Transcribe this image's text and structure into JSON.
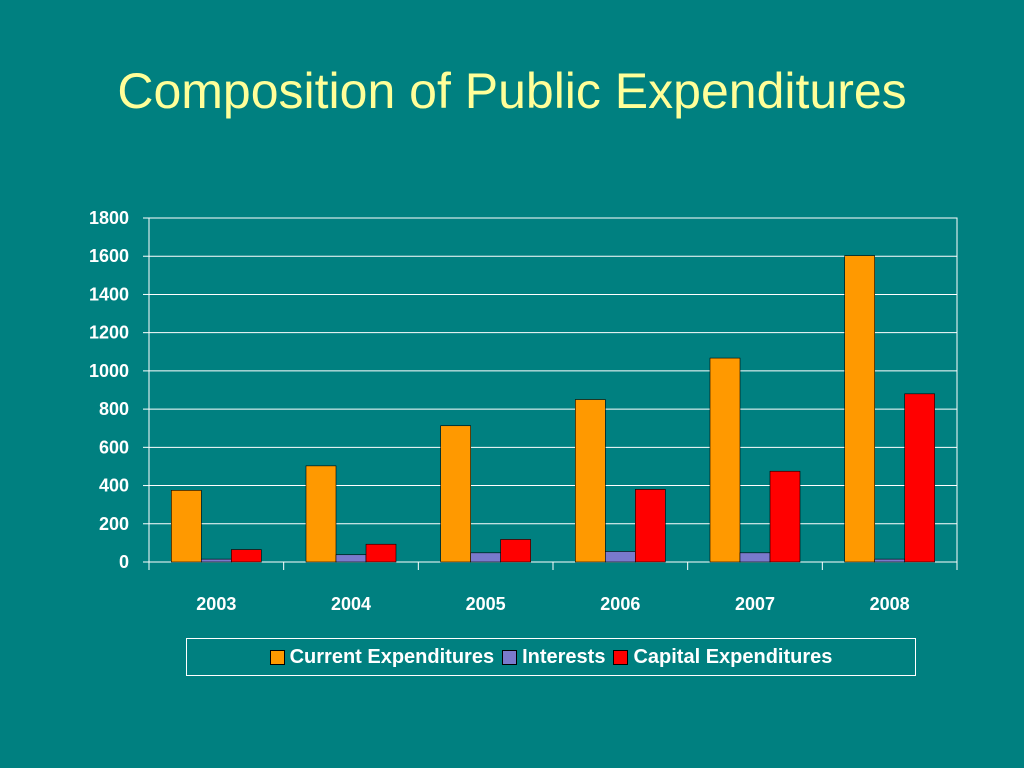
{
  "slide": {
    "title": "Composition of Public Expenditures"
  },
  "colors": {
    "background": "#008080",
    "title": "#ffff99",
    "axis": "#ffffff"
  },
  "chart_data": {
    "type": "bar",
    "title": "",
    "xlabel": "",
    "ylabel": "",
    "categories": [
      "2003",
      "2004",
      "2005",
      "2006",
      "2007",
      "2008"
    ],
    "ylim": [
      0,
      1800
    ],
    "yticks": [
      0,
      200,
      400,
      600,
      800,
      1000,
      1200,
      1400,
      1600,
      1800
    ],
    "grid": true,
    "legend_position": "bottom",
    "series": [
      {
        "name": "Current Expenditures",
        "color": "#ff9900",
        "values": [
          375,
          503,
          713,
          850,
          1067,
          1603
        ]
      },
      {
        "name": "Interests",
        "color": "#7a7acc",
        "values": [
          15,
          38,
          48,
          55,
          48,
          15
        ]
      },
      {
        "name": "Capital Expenditures",
        "color": "#ff0000",
        "values": [
          65,
          93,
          118,
          380,
          475,
          880
        ]
      }
    ]
  }
}
